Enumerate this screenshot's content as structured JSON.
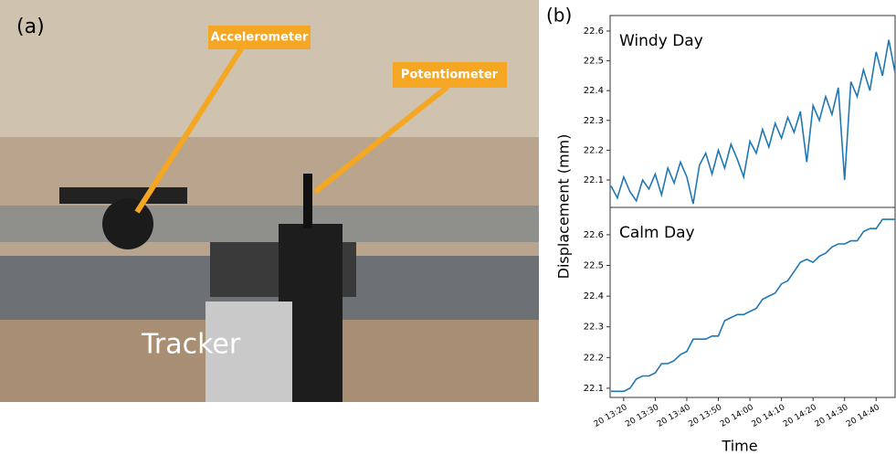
{
  "photo": {
    "label": "(a)",
    "annotations": [
      "Accelerometer",
      "Potentiometer"
    ],
    "caption": "Tracker"
  },
  "panel_b": {
    "label": "(b)",
    "ylabel": "Displacement (mm)",
    "xlabel": "Time"
  },
  "chart_data": [
    {
      "type": "line",
      "title": "Windy Day",
      "color": "#1f77b4",
      "x": [
        796,
        798,
        800,
        802,
        804,
        806,
        808,
        810,
        812,
        814,
        816,
        818,
        820,
        822,
        824,
        826,
        828,
        830,
        832,
        834,
        836,
        838,
        840,
        842,
        844,
        846,
        848,
        850,
        852,
        854,
        856,
        858,
        860,
        862,
        864,
        866,
        868,
        870,
        872,
        874,
        876,
        878,
        880,
        882,
        884,
        886
      ],
      "values": [
        22.08,
        22.04,
        22.11,
        22.06,
        22.03,
        22.1,
        22.07,
        22.12,
        22.05,
        22.14,
        22.09,
        22.16,
        22.11,
        22.02,
        22.15,
        22.19,
        22.12,
        22.2,
        22.14,
        22.22,
        22.17,
        22.11,
        22.23,
        22.19,
        22.27,
        22.21,
        22.29,
        22.24,
        22.31,
        22.26,
        22.33,
        22.16,
        22.35,
        22.3,
        22.38,
        22.32,
        22.41,
        22.1,
        22.43,
        22.38,
        22.47,
        22.4,
        22.53,
        22.45,
        22.57,
        22.46
      ],
      "xlim": [
        795.7,
        886
      ],
      "ylim": [
        22.008,
        22.652
      ],
      "yticks": [
        22.1,
        22.2,
        22.3,
        22.4,
        22.5,
        22.6
      ]
    },
    {
      "type": "line",
      "title": "Calm Day",
      "color": "#1f77b4",
      "x": [
        796,
        798,
        800,
        802,
        804,
        806,
        808,
        810,
        812,
        814,
        816,
        818,
        820,
        822,
        824,
        826,
        828,
        830,
        832,
        834,
        836,
        838,
        840,
        842,
        844,
        846,
        848,
        850,
        852,
        854,
        856,
        858,
        860,
        862,
        864,
        866,
        868,
        870,
        872,
        874,
        876,
        878,
        880,
        882,
        884,
        886
      ],
      "values": [
        22.09,
        22.09,
        22.09,
        22.1,
        22.13,
        22.14,
        22.14,
        22.15,
        22.18,
        22.18,
        22.19,
        22.21,
        22.22,
        22.26,
        22.26,
        22.26,
        22.27,
        22.27,
        22.32,
        22.33,
        22.34,
        22.34,
        22.35,
        22.36,
        22.39,
        22.4,
        22.41,
        22.44,
        22.45,
        22.48,
        22.51,
        22.52,
        22.51,
        22.53,
        22.54,
        22.56,
        22.57,
        22.57,
        22.58,
        22.58,
        22.61,
        22.62,
        22.62,
        22.65,
        22.65,
        22.65
      ],
      "xlim": [
        795.7,
        886
      ],
      "ylim": [
        22.07,
        22.689
      ],
      "yticks": [
        22.1,
        22.2,
        22.3,
        22.4,
        22.5,
        22.6
      ],
      "xticks": [
        {
          "value": 800,
          "label": "20 13:20"
        },
        {
          "value": 810,
          "label": "20 13:30"
        },
        {
          "value": 820,
          "label": "20 13:40"
        },
        {
          "value": 830,
          "label": "20 13:50"
        },
        {
          "value": 840,
          "label": "20 14:00"
        },
        {
          "value": 850,
          "label": "20 14:10"
        },
        {
          "value": 860,
          "label": "20 14:20"
        },
        {
          "value": 870,
          "label": "20 14:30"
        },
        {
          "value": 880,
          "label": "20 14:40"
        }
      ]
    }
  ]
}
